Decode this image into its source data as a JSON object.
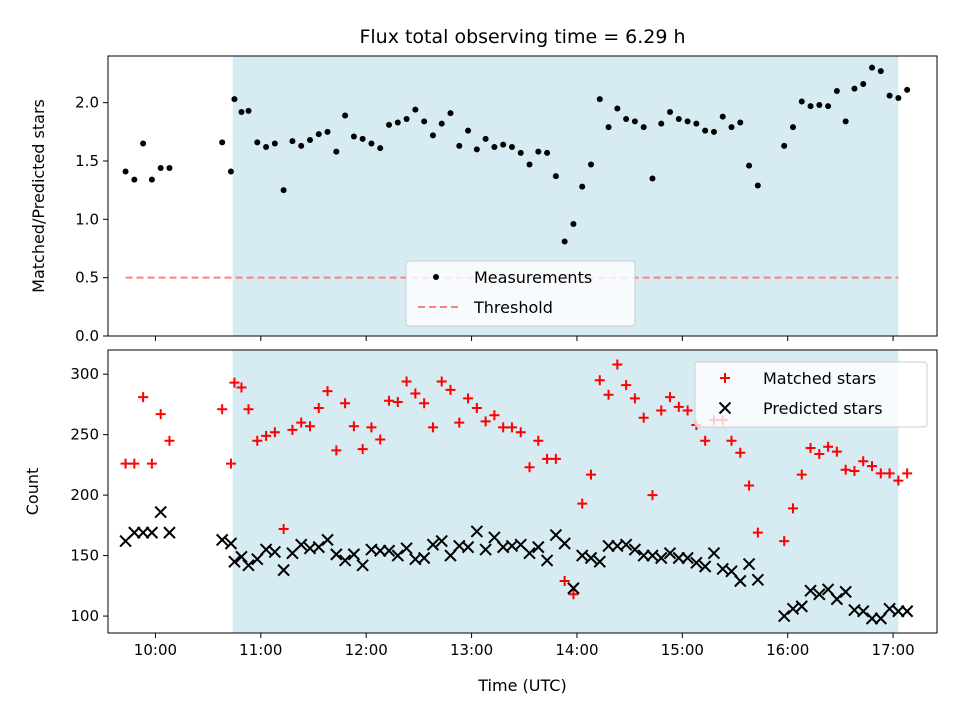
{
  "chart_data": [
    {
      "type": "scatter",
      "title": "Flux total observing time = 6.29 h",
      "ylabel": "Matched/Predicted stars",
      "xlabel": "",
      "xlim": [
        "09:33",
        "17:25"
      ],
      "ylim": [
        0,
        2.4
      ],
      "x_ticks": [
        "10:00",
        "11:00",
        "12:00",
        "13:00",
        "14:00",
        "15:00",
        "16:00",
        "17:00"
      ],
      "y_ticks": [
        "0.0",
        "0.5",
        "1.0",
        "1.5",
        "2.0"
      ],
      "highlight_span": {
        "start": "10:44",
        "end": "17:03",
        "color": "#add8e6"
      },
      "legend_position": "lower center",
      "series": [
        {
          "name": "Measurements",
          "color": "#000000",
          "marker": "dot",
          "points": [
            [
              "09:43",
              1.41
            ],
            [
              "09:48",
              1.34
            ],
            [
              "09:53",
              1.65
            ],
            [
              "09:58",
              1.34
            ],
            [
              "10:03",
              1.44
            ],
            [
              "10:08",
              1.44
            ],
            [
              "10:38",
              1.66
            ],
            [
              "10:43",
              1.41
            ],
            [
              "10:45",
              2.03
            ],
            [
              "10:49",
              1.92
            ],
            [
              "10:53",
              1.93
            ],
            [
              "10:58",
              1.66
            ],
            [
              "11:03",
              1.62
            ],
            [
              "11:08",
              1.65
            ],
            [
              "11:13",
              1.25
            ],
            [
              "11:18",
              1.67
            ],
            [
              "11:23",
              1.63
            ],
            [
              "11:28",
              1.68
            ],
            [
              "11:33",
              1.73
            ],
            [
              "11:38",
              1.75
            ],
            [
              "11:43",
              1.58
            ],
            [
              "11:48",
              1.89
            ],
            [
              "11:53",
              1.71
            ],
            [
              "11:58",
              1.69
            ],
            [
              "12:03",
              1.65
            ],
            [
              "12:08",
              1.61
            ],
            [
              "12:13",
              1.81
            ],
            [
              "12:18",
              1.83
            ],
            [
              "12:23",
              1.86
            ],
            [
              "12:28",
              1.94
            ],
            [
              "12:33",
              1.84
            ],
            [
              "12:38",
              1.72
            ],
            [
              "12:43",
              1.82
            ],
            [
              "12:48",
              1.91
            ],
            [
              "12:53",
              1.63
            ],
            [
              "12:58",
              1.76
            ],
            [
              "13:03",
              1.6
            ],
            [
              "13:08",
              1.69
            ],
            [
              "13:13",
              1.62
            ],
            [
              "13:18",
              1.64
            ],
            [
              "13:23",
              1.62
            ],
            [
              "13:28",
              1.57
            ],
            [
              "13:33",
              1.47
            ],
            [
              "13:38",
              1.58
            ],
            [
              "13:43",
              1.57
            ],
            [
              "13:48",
              1.37
            ],
            [
              "13:53",
              0.81
            ],
            [
              "13:58",
              0.96
            ],
            [
              "14:03",
              1.28
            ],
            [
              "14:08",
              1.47
            ],
            [
              "14:13",
              2.03
            ],
            [
              "14:18",
              1.79
            ],
            [
              "14:23",
              1.95
            ],
            [
              "14:28",
              1.86
            ],
            [
              "14:33",
              1.84
            ],
            [
              "14:38",
              1.79
            ],
            [
              "14:43",
              1.35
            ],
            [
              "14:48",
              1.82
            ],
            [
              "14:53",
              1.92
            ],
            [
              "14:58",
              1.86
            ],
            [
              "15:03",
              1.84
            ],
            [
              "15:08",
              1.82
            ],
            [
              "15:13",
              1.76
            ],
            [
              "15:18",
              1.75
            ],
            [
              "15:23",
              1.88
            ],
            [
              "15:28",
              1.79
            ],
            [
              "15:33",
              1.83
            ],
            [
              "15:38",
              1.46
            ],
            [
              "15:43",
              1.29
            ],
            [
              "15:58",
              1.63
            ],
            [
              "16:03",
              1.79
            ],
            [
              "16:08",
              2.01
            ],
            [
              "16:13",
              1.97
            ],
            [
              "16:18",
              1.98
            ],
            [
              "16:23",
              1.97
            ],
            [
              "16:28",
              2.1
            ],
            [
              "16:33",
              1.84
            ],
            [
              "16:38",
              2.12
            ],
            [
              "16:43",
              2.16
            ],
            [
              "16:48",
              2.3
            ],
            [
              "16:53",
              2.27
            ],
            [
              "16:58",
              2.06
            ],
            [
              "17:03",
              2.04
            ],
            [
              "17:08",
              2.11
            ]
          ]
        },
        {
          "name": "Threshold",
          "color": "#ff7f7f",
          "style": "dashed",
          "value": 0.5,
          "x_range": [
            "09:43",
            "17:03"
          ]
        }
      ]
    },
    {
      "type": "scatter",
      "title": "",
      "ylabel": "Count",
      "xlabel": "Time (UTC)",
      "xlim": [
        "09:33",
        "17:25"
      ],
      "ylim": [
        86,
        320
      ],
      "x_ticks": [
        "10:00",
        "11:00",
        "12:00",
        "13:00",
        "14:00",
        "15:00",
        "16:00",
        "17:00"
      ],
      "y_ticks": [
        "100",
        "150",
        "200",
        "250",
        "300"
      ],
      "highlight_span": {
        "start": "10:44",
        "end": "17:03",
        "color": "#add8e6"
      },
      "legend_position": "upper right",
      "series": [
        {
          "name": "Matched stars",
          "color": "#ff0000",
          "marker": "plus",
          "points": [
            [
              "09:43",
              226
            ],
            [
              "09:48",
              226
            ],
            [
              "09:53",
              281
            ],
            [
              "09:58",
              226
            ],
            [
              "10:03",
              267
            ],
            [
              "10:08",
              245
            ],
            [
              "10:38",
              271
            ],
            [
              "10:43",
              226
            ],
            [
              "10:45",
              293
            ],
            [
              "10:49",
              289
            ],
            [
              "10:53",
              271
            ],
            [
              "10:58",
              245
            ],
            [
              "11:03",
              249
            ],
            [
              "11:08",
              252
            ],
            [
              "11:13",
              172
            ],
            [
              "11:18",
              254
            ],
            [
              "11:23",
              260
            ],
            [
              "11:28",
              257
            ],
            [
              "11:33",
              272
            ],
            [
              "11:38",
              286
            ],
            [
              "11:43",
              237
            ],
            [
              "11:48",
              276
            ],
            [
              "11:53",
              257
            ],
            [
              "11:58",
              238
            ],
            [
              "12:03",
              256
            ],
            [
              "12:08",
              246
            ],
            [
              "12:13",
              278
            ],
            [
              "12:18",
              277
            ],
            [
              "12:23",
              294
            ],
            [
              "12:28",
              284
            ],
            [
              "12:33",
              276
            ],
            [
              "12:38",
              256
            ],
            [
              "12:43",
              294
            ],
            [
              "12:48",
              287
            ],
            [
              "12:53",
              260
            ],
            [
              "12:58",
              280
            ],
            [
              "13:03",
              272
            ],
            [
              "13:08",
              261
            ],
            [
              "13:13",
              266
            ],
            [
              "13:18",
              256
            ],
            [
              "13:23",
              256
            ],
            [
              "13:28",
              252
            ],
            [
              "13:33",
              223
            ],
            [
              "13:38",
              245
            ],
            [
              "13:43",
              230
            ],
            [
              "13:48",
              230
            ],
            [
              "13:53",
              129
            ],
            [
              "13:58",
              118
            ],
            [
              "14:03",
              193
            ],
            [
              "14:08",
              217
            ],
            [
              "14:13",
              295
            ],
            [
              "14:18",
              283
            ],
            [
              "14:23",
              308
            ],
            [
              "14:28",
              291
            ],
            [
              "14:33",
              280
            ],
            [
              "14:38",
              264
            ],
            [
              "14:43",
              200
            ],
            [
              "14:48",
              270
            ],
            [
              "14:53",
              281
            ],
            [
              "14:58",
              273
            ],
            [
              "15:03",
              270
            ],
            [
              "15:08",
              258
            ],
            [
              "15:13",
              245
            ],
            [
              "15:18",
              262
            ],
            [
              "15:23",
              262
            ],
            [
              "15:28",
              245
            ],
            [
              "15:33",
              235
            ],
            [
              "15:38",
              208
            ],
            [
              "15:43",
              169
            ],
            [
              "15:58",
              162
            ],
            [
              "16:03",
              189
            ],
            [
              "16:08",
              217
            ],
            [
              "16:13",
              239
            ],
            [
              "16:18",
              234
            ],
            [
              "16:23",
              240
            ],
            [
              "16:28",
              236
            ],
            [
              "16:33",
              221
            ],
            [
              "16:38",
              220
            ],
            [
              "16:43",
              228
            ],
            [
              "16:48",
              224
            ],
            [
              "16:53",
              218
            ],
            [
              "16:58",
              218
            ],
            [
              "17:03",
              212
            ],
            [
              "17:08",
              218
            ]
          ]
        },
        {
          "name": "Predicted stars",
          "color": "#000000",
          "marker": "x",
          "points": [
            [
              "09:43",
              162
            ],
            [
              "09:48",
              169
            ],
            [
              "09:53",
              169
            ],
            [
              "09:58",
              169
            ],
            [
              "10:03",
              186
            ],
            [
              "10:08",
              169
            ],
            [
              "10:38",
              163
            ],
            [
              "10:43",
              160
            ],
            [
              "10:45",
              145
            ],
            [
              "10:49",
              149
            ],
            [
              "10:53",
              142
            ],
            [
              "10:58",
              147
            ],
            [
              "11:03",
              155
            ],
            [
              "11:08",
              153
            ],
            [
              "11:13",
              138
            ],
            [
              "11:18",
              152
            ],
            [
              "11:23",
              159
            ],
            [
              "11:28",
              156
            ],
            [
              "11:33",
              157
            ],
            [
              "11:38",
              163
            ],
            [
              "11:43",
              151
            ],
            [
              "11:48",
              146
            ],
            [
              "11:53",
              151
            ],
            [
              "11:58",
              142
            ],
            [
              "12:03",
              155
            ],
            [
              "12:08",
              154
            ],
            [
              "12:13",
              154
            ],
            [
              "12:18",
              150
            ],
            [
              "12:23",
              156
            ],
            [
              "12:28",
              147
            ],
            [
              "12:33",
              148
            ],
            [
              "12:38",
              159
            ],
            [
              "12:43",
              162
            ],
            [
              "12:48",
              150
            ],
            [
              "12:53",
              158
            ],
            [
              "12:58",
              157
            ],
            [
              "13:03",
              170
            ],
            [
              "13:08",
              155
            ],
            [
              "13:13",
              165
            ],
            [
              "13:18",
              157
            ],
            [
              "13:23",
              158
            ],
            [
              "13:28",
              159
            ],
            [
              "13:33",
              152
            ],
            [
              "13:38",
              157
            ],
            [
              "13:43",
              146
            ],
            [
              "13:48",
              167
            ],
            [
              "13:53",
              160
            ],
            [
              "13:58",
              123
            ],
            [
              "14:03",
              150
            ],
            [
              "14:08",
              148
            ],
            [
              "14:13",
              145
            ],
            [
              "14:18",
              158
            ],
            [
              "14:23",
              158
            ],
            [
              "14:28",
              159
            ],
            [
              "14:33",
              155
            ],
            [
              "14:38",
              150
            ],
            [
              "14:43",
              150
            ],
            [
              "14:48",
              148
            ],
            [
              "14:53",
              152
            ],
            [
              "14:58",
              148
            ],
            [
              "15:03",
              148
            ],
            [
              "15:08",
              144
            ],
            [
              "15:13",
              141
            ],
            [
              "15:18",
              152
            ],
            [
              "15:23",
              139
            ],
            [
              "15:28",
              137
            ],
            [
              "15:33",
              129
            ],
            [
              "15:38",
              143
            ],
            [
              "15:43",
              130
            ],
            [
              "15:58",
              100
            ],
            [
              "16:03",
              106
            ],
            [
              "16:08",
              108
            ],
            [
              "16:13",
              121
            ],
            [
              "16:18",
              118
            ],
            [
              "16:23",
              122
            ],
            [
              "16:28",
              114
            ],
            [
              "16:33",
              120
            ],
            [
              "16:38",
              105
            ],
            [
              "16:43",
              104
            ],
            [
              "16:48",
              98
            ],
            [
              "16:53",
              98
            ],
            [
              "16:58",
              106
            ],
            [
              "17:03",
              104
            ],
            [
              "17:08",
              104
            ]
          ]
        }
      ]
    }
  ]
}
